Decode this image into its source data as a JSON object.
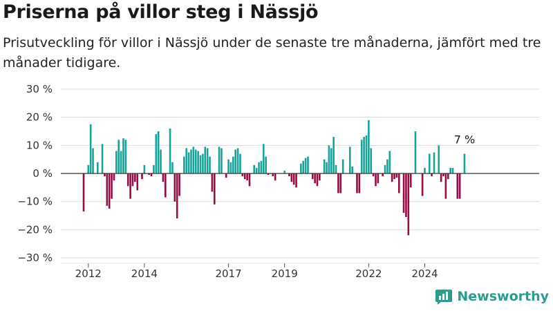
{
  "title": "Priserna på villor steg i Nässjö",
  "subtitle": "Prisutveckling för villor i Nässjö under de senaste tre månaderna, jämfört med tre månader tidigare.",
  "brand": "Newsworthy",
  "colors": {
    "positive": "#16a39a",
    "negative": "#960c45",
    "grid": "#dddddd",
    "zero": "#333333"
  },
  "chart_data": {
    "type": "bar",
    "title": "Priserna på villor steg i Nässjö",
    "xlabel": "",
    "ylabel": "",
    "ylim": [
      -30,
      30
    ],
    "yticks": [
      30,
      20,
      10,
      0,
      -10,
      -20,
      -30
    ],
    "ytick_labels": [
      "30 %",
      "20 %",
      "10 %",
      "0 %",
      "−10 %",
      "−20 %",
      "−30 %"
    ],
    "x_start": "2011-11",
    "xticks": [
      {
        "date": "2012-01",
        "label": "2012"
      },
      {
        "date": "2014-01",
        "label": "2014"
      },
      {
        "date": "2017-01",
        "label": "2017"
      },
      {
        "date": "2019-01",
        "label": "2019"
      },
      {
        "date": "2022-01",
        "label": "2022"
      },
      {
        "date": "2024-01",
        "label": "2024"
      }
    ],
    "values": [
      -13.5,
      0,
      3,
      17.5,
      9,
      0,
      4,
      0,
      10.5,
      -1,
      -11.5,
      -12.5,
      -9,
      -2.5,
      8,
      12,
      8,
      12.5,
      12,
      -4.5,
      -9,
      -4.5,
      -3,
      -6,
      0,
      -2,
      3,
      0,
      -0.5,
      -1,
      3,
      14,
      15,
      8.5,
      -3,
      -8.5,
      0,
      16,
      4,
      -10,
      -16,
      -8,
      0,
      6,
      9,
      7.5,
      8.5,
      9.5,
      8.5,
      8,
      6.5,
      7,
      9.5,
      9,
      6,
      -6.5,
      -11,
      0,
      9.5,
      9,
      0,
      -1.5,
      5,
      4,
      6,
      8.5,
      9,
      7,
      -1,
      -2,
      -2.5,
      -4.5,
      0,
      3,
      2,
      4,
      4.5,
      10.5,
      6,
      -0.5,
      0,
      -1,
      -2.5,
      0,
      0,
      0,
      1,
      0,
      -1,
      -3,
      -4,
      -5,
      0,
      3.5,
      4.5,
      5.5,
      6,
      0,
      -2,
      -3.5,
      -4.5,
      -2.5,
      0,
      5,
      4,
      10,
      9,
      13,
      3,
      -7,
      -7,
      5,
      0,
      0,
      9.5,
      2.5,
      0,
      -7,
      -7,
      12,
      13,
      13.5,
      19,
      9,
      -1,
      -4.5,
      -3.5,
      0,
      -1,
      3,
      5,
      8,
      -3,
      -2,
      -1.5,
      -7,
      0,
      -14,
      -15.5,
      -22,
      -5,
      0,
      15,
      0,
      0,
      -8,
      2,
      0,
      7,
      -1,
      7.5,
      0,
      10,
      -3,
      -1,
      -9,
      -2,
      2,
      2,
      0,
      -9,
      -9,
      0,
      7
    ],
    "annotation": {
      "text": "7 %",
      "value": 7
    }
  }
}
